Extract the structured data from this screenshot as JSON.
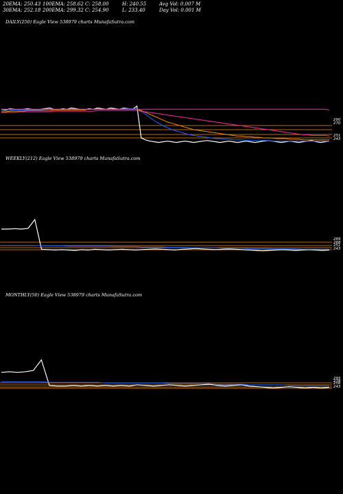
{
  "header": {
    "row1": [
      "20EMA: 250.43",
      "100EMA: 258.62",
      "C: 258.00",
      "H: 240.55",
      "Avg Vol: 0.007 M"
    ],
    "row2": [
      "30EMA: 252.18",
      "200EMA: 299.32",
      "C: 254.90",
      "L: 233.40",
      "Day Vol: 0.001 M"
    ]
  },
  "panels": [
    {
      "label": "DAILY(250) Eagle   View  538979 charts MunafaSutra.com",
      "right_labels": [
        "290",
        "270",
        "251",
        "243"
      ]
    },
    {
      "label": "WEEKLY(212) Eagle   View  538979 charts MunafaSutra.com",
      "right_labels": [
        "289",
        "268",
        "251",
        "243"
      ]
    },
    {
      "label": "MONTHLY(50) Eagle   View  538979 charts MunafaSutra.com",
      "right_labels": [
        "295",
        "278",
        "256",
        "243"
      ]
    }
  ],
  "colors": {
    "price": "#ffffff",
    "ema20": "#1e63ff",
    "ema30": "#ff8c00",
    "ema100": "#ff2aa0",
    "ema200": "#ff2aa0",
    "level": "#b86a1a",
    "volume": "#ffffff"
  },
  "chart_data": [
    {
      "type": "line",
      "series": [
        {
          "values": [
            300,
            299,
            301,
            300,
            299,
            300,
            301,
            300,
            299,
            300,
            301,
            302,
            300,
            299,
            301,
            300,
            302,
            301,
            300,
            299,
            301,
            300,
            302,
            301,
            300,
            302,
            301,
            300,
            302,
            301,
            300,
            305,
            255,
            252,
            250,
            249,
            248,
            249,
            250,
            249,
            248,
            249,
            250,
            249,
            248,
            249,
            250,
            251,
            250,
            249,
            248,
            249,
            250,
            249,
            248,
            249,
            250,
            249,
            248,
            249,
            250,
            251,
            250,
            249,
            248,
            249,
            250,
            249,
            248,
            249,
            250,
            251,
            249,
            248,
            249,
            250
          ]
        },
        {
          "values": [
            298,
            298,
            298,
            299,
            299,
            299,
            299,
            299,
            299,
            299,
            300,
            300,
            300,
            300,
            300,
            300,
            300,
            300,
            300,
            300,
            300,
            300,
            300,
            300,
            300,
            300,
            300,
            300,
            301,
            301,
            301,
            301,
            297,
            292,
            287,
            282,
            278,
            274,
            271,
            268,
            266,
            264,
            262,
            260,
            259,
            258,
            257,
            256,
            255,
            254,
            254,
            253,
            253,
            252,
            252,
            252,
            251,
            251,
            251,
            251,
            251,
            251,
            250,
            250,
            250,
            250,
            250,
            250,
            250,
            250,
            250,
            250,
            250,
            250,
            250,
            250
          ]
        },
        {
          "values": [
            296,
            296,
            297,
            297,
            297,
            297,
            298,
            298,
            298,
            298,
            298,
            298,
            299,
            299,
            299,
            299,
            299,
            299,
            299,
            299,
            300,
            300,
            300,
            300,
            300,
            300,
            300,
            300,
            300,
            300,
            300,
            300,
            298,
            295,
            292,
            289,
            286,
            283,
            280,
            278,
            276,
            274,
            272,
            270,
            268,
            267,
            266,
            265,
            264,
            263,
            262,
            261,
            260,
            259,
            258,
            258,
            257,
            257,
            256,
            256,
            255,
            255,
            255,
            254,
            254,
            254,
            253,
            253,
            253,
            252,
            252,
            252,
            252,
            252,
            252,
            252
          ]
        },
        {
          "values": [
            295,
            295,
            295,
            295,
            296,
            296,
            296,
            296,
            296,
            296,
            296,
            296,
            297,
            297,
            297,
            297,
            297,
            297,
            297,
            297,
            297,
            297,
            298,
            298,
            298,
            298,
            298,
            298,
            298,
            298,
            298,
            298,
            297,
            296,
            295,
            294,
            293,
            292,
            291,
            290,
            289,
            288,
            287,
            286,
            285,
            284,
            283,
            282,
            281,
            280,
            279,
            278,
            277,
            276,
            275,
            274,
            273,
            272,
            271,
            270,
            269,
            268,
            267,
            266,
            265,
            264,
            263,
            262,
            261,
            260,
            260,
            259,
            259,
            259,
            259,
            258
          ]
        },
        {
          "values": [
            300,
            300,
            300,
            300,
            300,
            300,
            300,
            300,
            300,
            300,
            300,
            300,
            300,
            300,
            300,
            300,
            300,
            300,
            300,
            300,
            300,
            300,
            300,
            300,
            300,
            300,
            300,
            300,
            300,
            300,
            300,
            300,
            300,
            300,
            300,
            300,
            300,
            300,
            300,
            300,
            300,
            300,
            300,
            300,
            300,
            300,
            300,
            300,
            300,
            300,
            300,
            300,
            300,
            300,
            300,
            300,
            300,
            300,
            300,
            300,
            300,
            300,
            300,
            300,
            300,
            300,
            300,
            300,
            300,
            300,
            300,
            300,
            300,
            300,
            300,
            299
          ]
        }
      ]
    },
    {
      "type": "line",
      "series": [
        {
          "values": [
            305,
            305,
            306,
            305,
            307,
            330,
            252,
            251,
            250,
            251,
            250,
            249,
            251,
            250,
            252,
            251,
            250,
            251,
            252,
            251,
            250,
            251,
            252,
            253,
            252,
            251,
            250,
            252,
            253,
            254,
            253,
            252,
            251,
            252,
            253,
            252,
            251,
            250,
            249,
            248,
            249,
            250,
            251,
            250,
            249,
            250,
            251,
            250,
            249,
            250
          ]
        },
        {
          "values": [
            262,
            262,
            262,
            262,
            262,
            262,
            261,
            261,
            261,
            261,
            260,
            260,
            260,
            260,
            260,
            260,
            260,
            259,
            259,
            259,
            259,
            258,
            258,
            258,
            258,
            257,
            257,
            257,
            257,
            256,
            256,
            256,
            256,
            255,
            255,
            255,
            255,
            254,
            254,
            254,
            254,
            253,
            253,
            253,
            253,
            252,
            252,
            252,
            252,
            252
          ]
        }
      ]
    },
    {
      "type": "line",
      "series": [
        {
          "values": [
            265,
            266,
            265,
            266,
            268,
            285,
            244,
            243,
            243,
            244,
            243,
            244,
            243,
            244,
            243,
            244,
            243,
            245,
            244,
            243,
            244,
            245,
            244,
            243,
            244,
            245,
            246,
            244,
            243,
            244,
            245,
            243,
            242,
            241,
            240,
            241,
            242,
            241,
            240,
            241,
            240,
            241
          ]
        },
        {
          "values": [
            250,
            250,
            250,
            250,
            250,
            250,
            249,
            249,
            249,
            249,
            249,
            249,
            249,
            248,
            248,
            248,
            248,
            248,
            248,
            248,
            248,
            247,
            247,
            247,
            247,
            247,
            247,
            246,
            246,
            246,
            246,
            245,
            245,
            245,
            245,
            245,
            244,
            244,
            244,
            244,
            244,
            244
          ]
        }
      ]
    }
  ]
}
